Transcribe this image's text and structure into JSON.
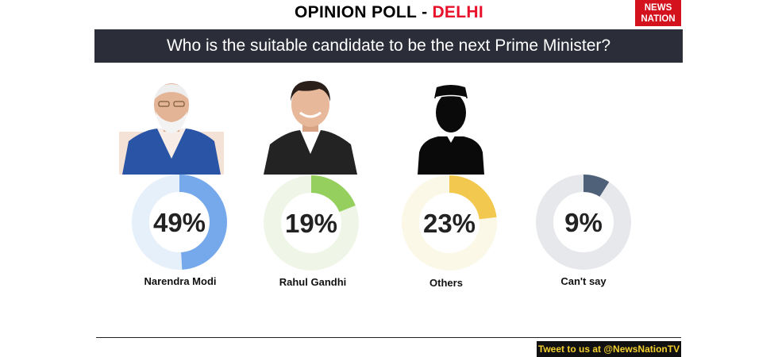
{
  "header": {
    "title_left": "OPINION POLL",
    "title_sep": "-",
    "title_right": "DELHI",
    "title_right_color": "#e8102a",
    "logo_line1": "NEWS",
    "logo_line2": "NATION"
  },
  "question": "Who is the suitable candidate to be the next Prime Minister?",
  "chart_data": {
    "type": "pie",
    "title": "Who is the suitable candidate to be the next Prime Minister?",
    "categories": [
      "Narendra Modi",
      "Rahul Gandhi",
      "Others",
      "Can't say"
    ],
    "values": [
      49,
      19,
      23,
      9
    ],
    "value_labels": [
      "49%",
      "19%",
      "23%",
      "9%"
    ],
    "unit": "%",
    "colors": [
      "#76a8ec",
      "#95d05f",
      "#f3c84f",
      "#4f6079"
    ],
    "track_colors": [
      "#e6f0fb",
      "#eff6e8",
      "#fcf8e8",
      "#e6e8eb"
    ]
  },
  "footer": {
    "tweet": "Tweet to us at @NewsNationTV"
  }
}
